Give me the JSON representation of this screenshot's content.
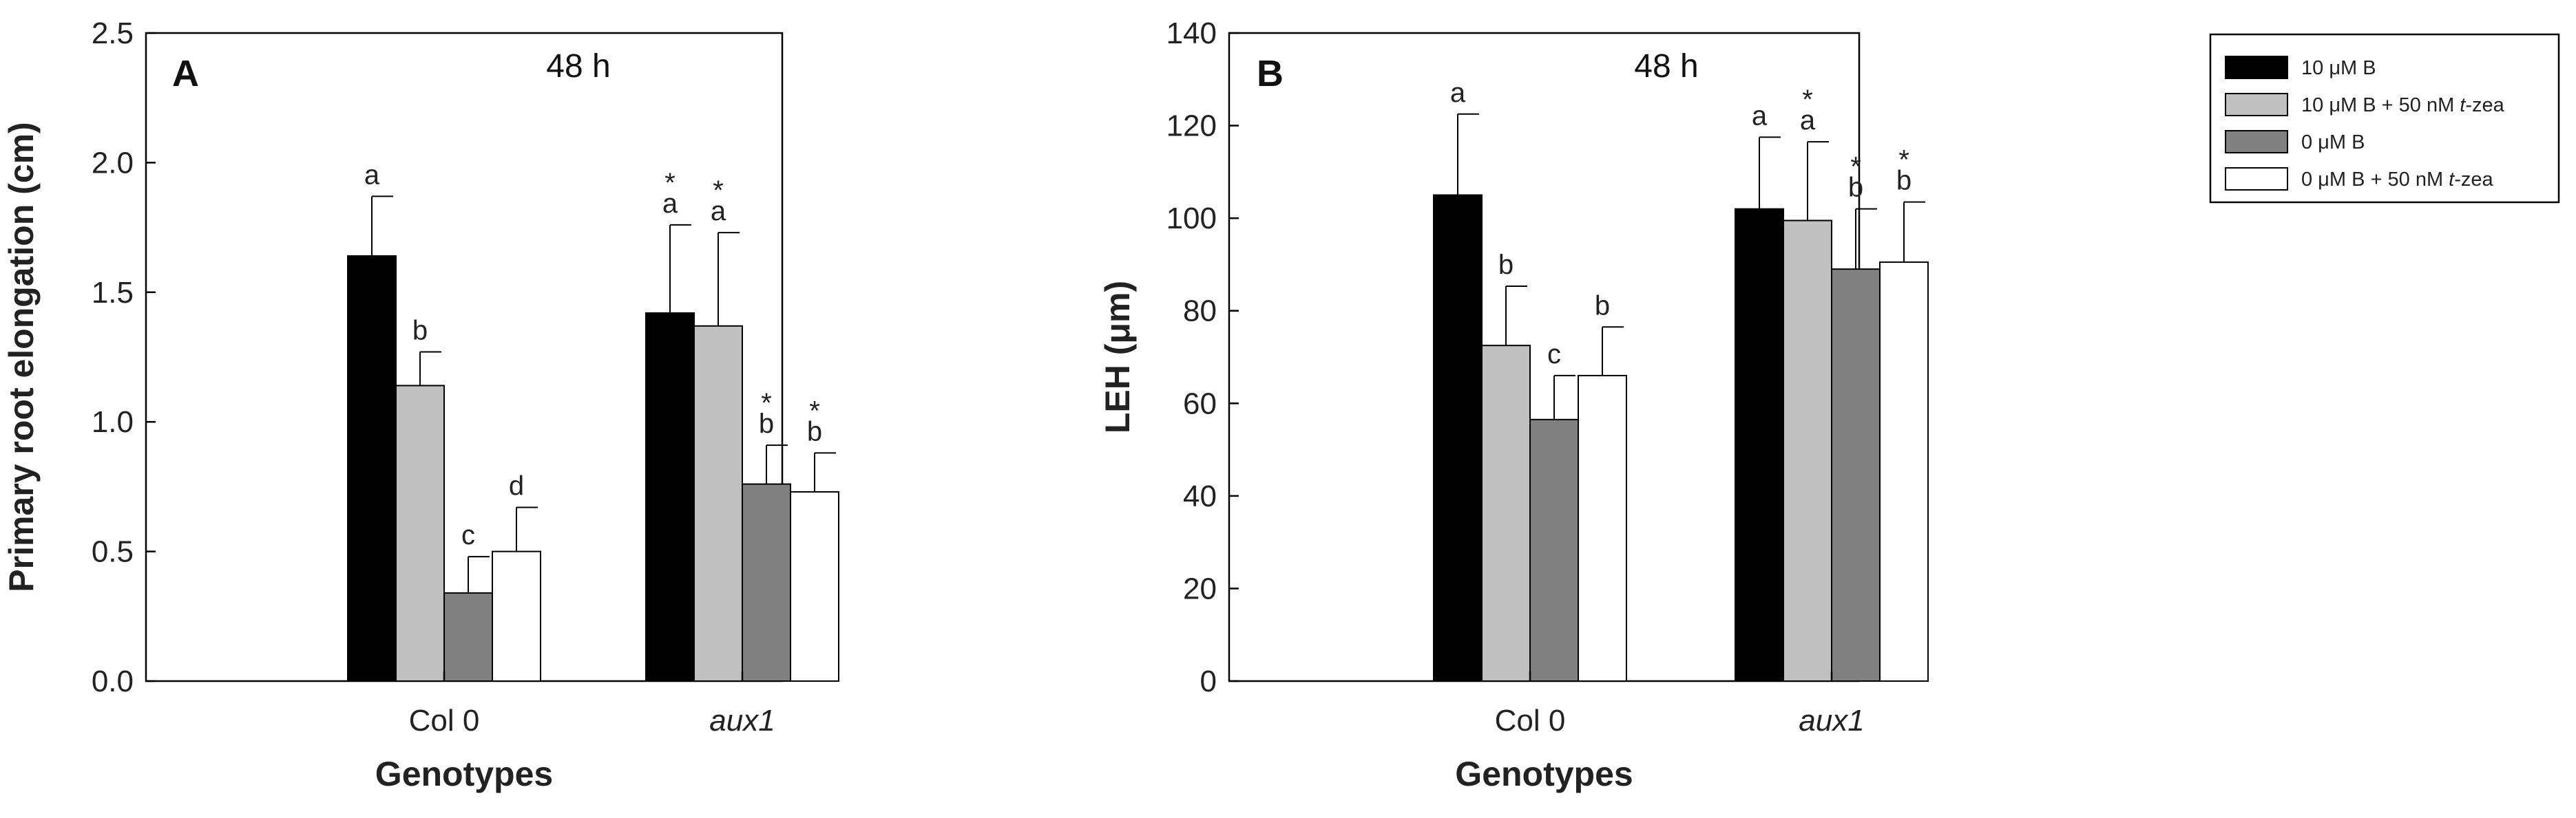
{
  "legend": {
    "items": [
      {
        "prefix": "10 μM B",
        "italic": "",
        "suffix": "",
        "color": "#000000"
      },
      {
        "prefix": "10 μM B + 50 nM ",
        "italic": "t",
        "suffix": "-zea",
        "color": "#c0c0c0"
      },
      {
        "prefix": "0 μM B",
        "italic": "",
        "suffix": "",
        "color": "#808080"
      },
      {
        "prefix": "0 μM B + 50 nM ",
        "italic": "t",
        "suffix": "-zea",
        "color": "#ffffff"
      }
    ]
  },
  "chart_data": [
    {
      "type": "bar",
      "panel": "A",
      "title": "48 h",
      "xlabel": "Genotypes",
      "ylabel": "Primary root elongation (cm)",
      "ylim": [
        0,
        2.5
      ],
      "yticks": [
        "0.0",
        "0.5",
        "1.0",
        "1.5",
        "2.0",
        "2.5"
      ],
      "categories": [
        "Col 0",
        "aux1"
      ],
      "series": [
        {
          "name": "10 μM B",
          "color": "#000000",
          "values": [
            1.64,
            1.42
          ],
          "errors": [
            0.23,
            0.34
          ],
          "letters": [
            "a",
            "a"
          ],
          "stars": [
            false,
            true
          ]
        },
        {
          "name": "10 μM B + 50 nM t-zea",
          "color": "#c0c0c0",
          "values": [
            1.14,
            1.37
          ],
          "errors": [
            0.13,
            0.36
          ],
          "letters": [
            "b",
            "a"
          ],
          "stars": [
            false,
            true
          ]
        },
        {
          "name": "0 μM B",
          "color": "#808080",
          "values": [
            0.34,
            0.76
          ],
          "errors": [
            0.14,
            0.15
          ],
          "letters": [
            "c",
            "b"
          ],
          "stars": [
            false,
            true
          ]
        },
        {
          "name": "0 μM B + 50 nM t-zea",
          "color": "#ffffff",
          "values": [
            0.5,
            0.73
          ],
          "errors": [
            0.17,
            0.15
          ],
          "letters": [
            "d",
            "b"
          ],
          "stars": [
            false,
            true
          ]
        }
      ]
    },
    {
      "type": "bar",
      "panel": "B",
      "title": "48 h",
      "xlabel": "Genotypes",
      "ylabel": "LEH (μm)",
      "ylim": [
        0,
        140
      ],
      "yticks": [
        "0",
        "20",
        "40",
        "60",
        "80",
        "100",
        "120",
        "140"
      ],
      "categories": [
        "Col 0",
        "aux1"
      ],
      "series": [
        {
          "name": "10 μM B",
          "color": "#000000",
          "values": [
            105,
            102
          ],
          "errors": [
            17.5,
            15.5
          ],
          "letters": [
            "a",
            "a"
          ],
          "stars": [
            false,
            false
          ]
        },
        {
          "name": "10 μM B + 50 nM t-zea",
          "color": "#c0c0c0",
          "values": [
            72.5,
            99.5
          ],
          "errors": [
            12.8,
            17
          ],
          "letters": [
            "b",
            "a"
          ],
          "stars": [
            false,
            true
          ]
        },
        {
          "name": "0 μM B",
          "color": "#808080",
          "values": [
            56.5,
            89
          ],
          "errors": [
            9.5,
            13
          ],
          "letters": [
            "c",
            "b"
          ],
          "stars": [
            false,
            true
          ]
        },
        {
          "name": "0 μM B + 50 nM t-zea",
          "color": "#ffffff",
          "values": [
            66,
            90.5
          ],
          "errors": [
            10.5,
            13
          ],
          "letters": [
            "b",
            "b"
          ],
          "stars": [
            false,
            true
          ]
        }
      ]
    }
  ]
}
